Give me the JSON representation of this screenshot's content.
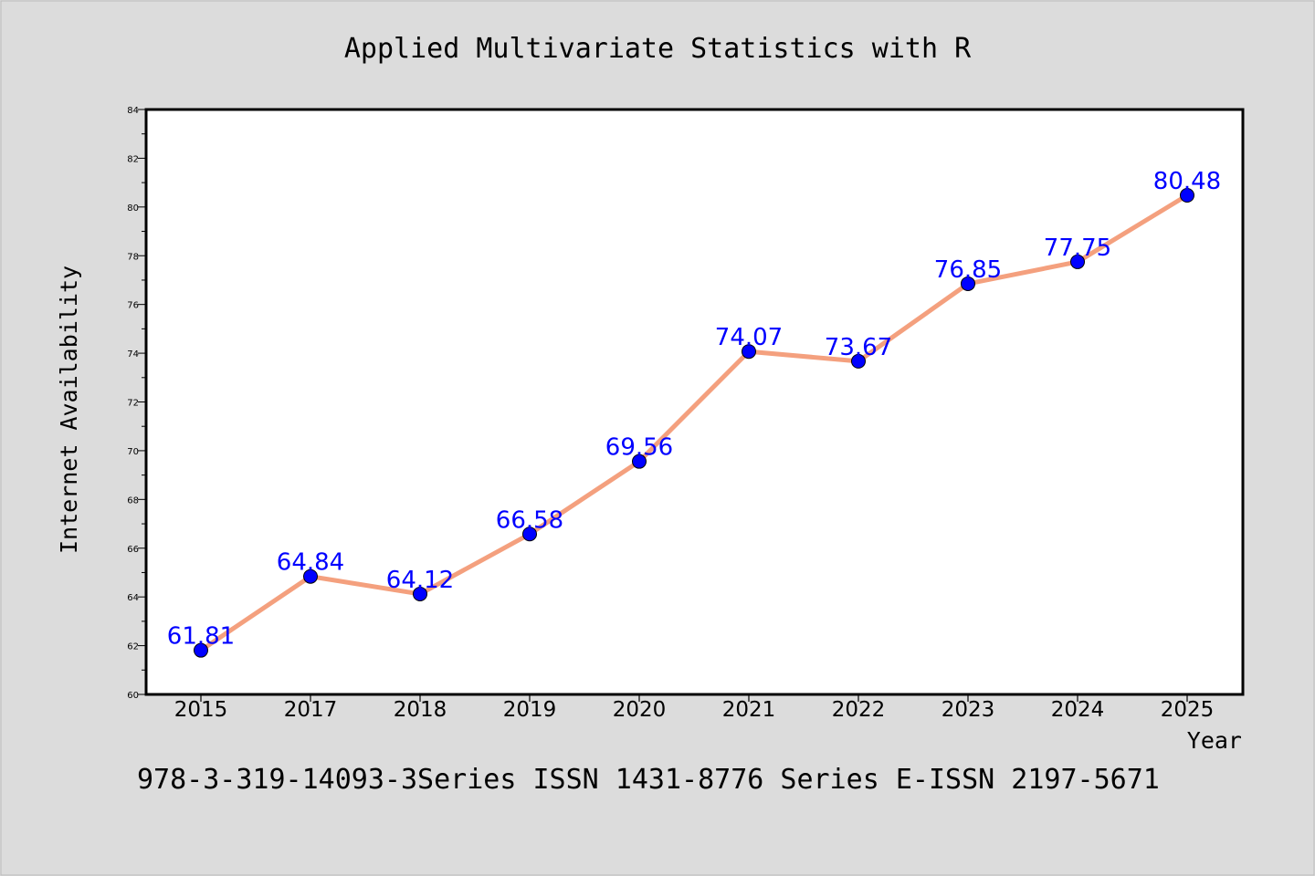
{
  "chart_data": {
    "type": "line",
    "title": "Applied Multivariate Statistics with R",
    "xlabel": "Year",
    "ylabel": "Internet Availability",
    "categories": [
      "2015",
      "2017",
      "2018",
      "2019",
      "2020",
      "2021",
      "2022",
      "2023",
      "2024",
      "2025"
    ],
    "series": [
      {
        "values": [
          61.81,
          64.84,
          64.12,
          66.58,
          69.56,
          74.07,
          73.67,
          76.85,
          77.75,
          80.48
        ],
        "data_labels": [
          "61.81",
          "64.84",
          "64.12",
          "66.58",
          "69.56",
          "74.07",
          "73.67",
          "76.85",
          "77.75",
          "80.48"
        ]
      }
    ],
    "ylim": [
      60,
      84
    ],
    "yticks": [
      "60",
      "62",
      "64",
      "66",
      "68",
      "70",
      "72",
      "74",
      "76",
      "78",
      "80",
      "82",
      "84"
    ],
    "grid": false,
    "legend": "none",
    "colors": {
      "line": "#f4a07e",
      "marker": "#0000ff",
      "data_label": "#0000ff",
      "background": "#dcdcdc",
      "plot_background": "#ffffff"
    }
  },
  "footer": "978-3-319-14093-3Series ISSN 1431-8776 Series E-ISSN 2197-5671"
}
